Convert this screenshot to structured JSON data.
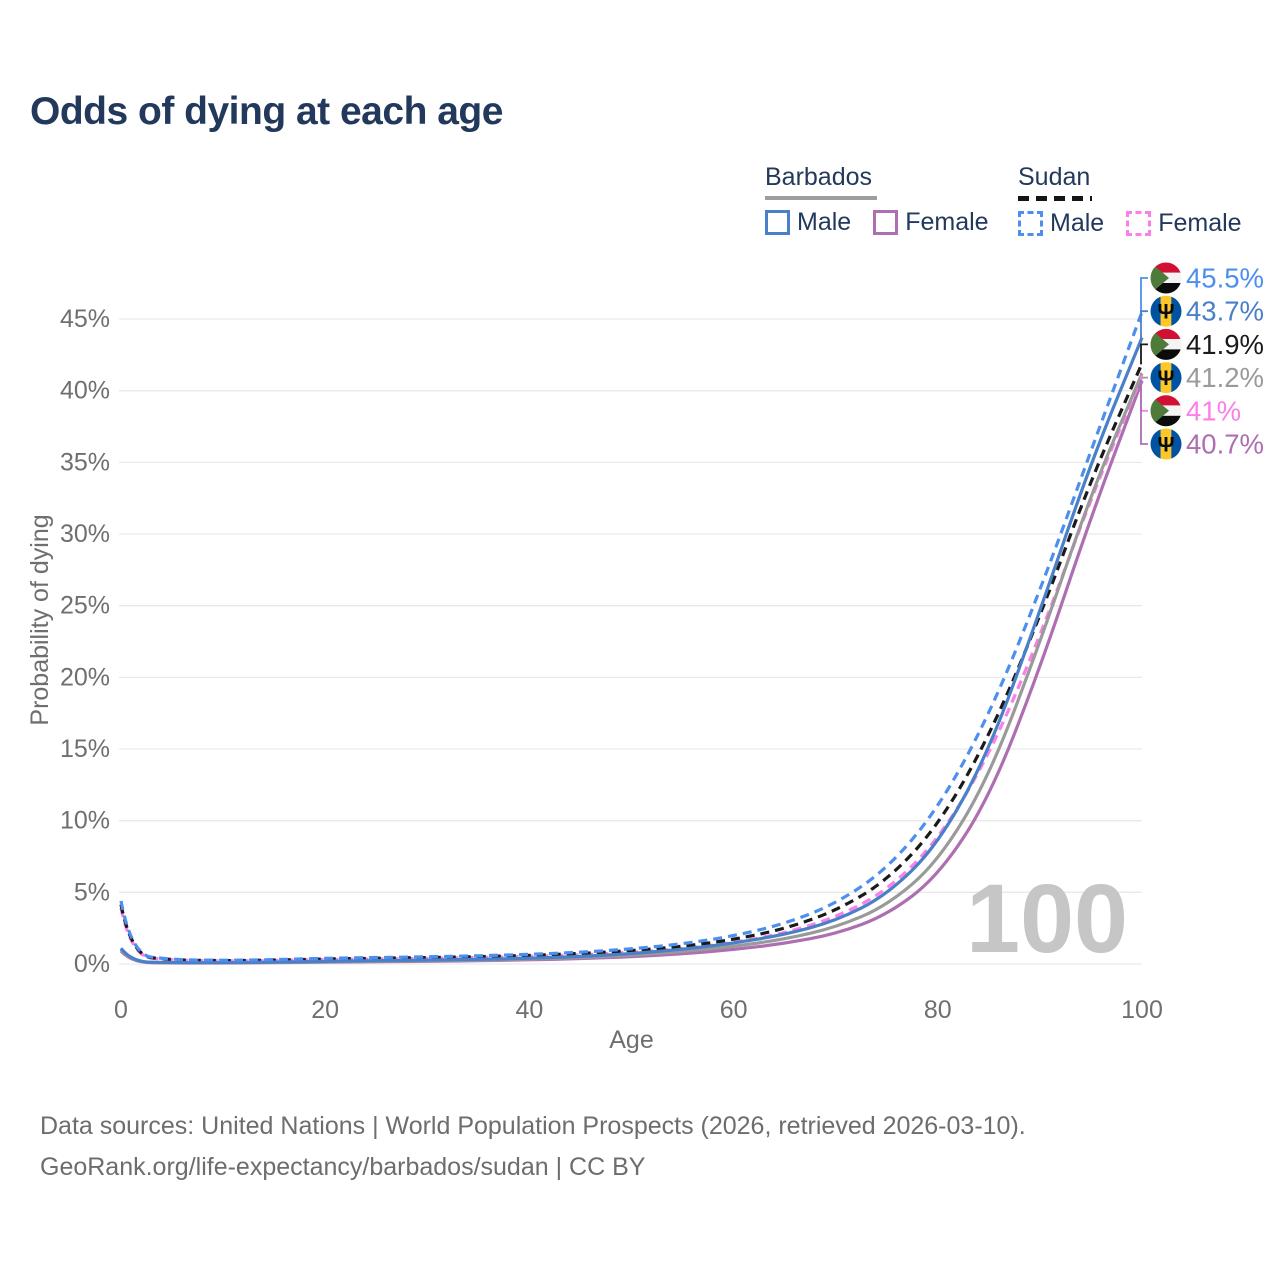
{
  "title": "Odds of dying at each age",
  "legend": {
    "groups": [
      {
        "country": "Barbados",
        "style": "solid",
        "underline_color": "#9e9e9e",
        "items": [
          {
            "label": "Male",
            "color": "#4a80c8"
          },
          {
            "label": "Female",
            "color": "#ad6eb2"
          }
        ]
      },
      {
        "country": "Sudan",
        "style": "dashed",
        "underline_color": "#151515",
        "items": [
          {
            "label": "Male",
            "color": "#4d8fee"
          },
          {
            "label": "Female",
            "color": "#fb7fe8"
          }
        ]
      }
    ]
  },
  "watermark": "100",
  "footer": {
    "line1": "Data sources: United Nations | World Population Prospects (2026, retrieved 2026-03-10).",
    "line2": "GeoRank.org/life-expectancy/barbados/sudan | CC BY"
  },
  "chart_data": {
    "type": "line",
    "title": "Odds of dying at each age",
    "xlabel": "Age",
    "ylabel": "Probability of dying",
    "xlim": [
      0,
      100
    ],
    "ylim_percent": [
      0,
      47
    ],
    "x_ticks": [
      0,
      20,
      40,
      60,
      80,
      100
    ],
    "y_ticks_percent": [
      0,
      5,
      10,
      15,
      20,
      25,
      30,
      35,
      40,
      45
    ],
    "grid": "horizontal",
    "legend_position": "top-right",
    "x": [
      0,
      1,
      5,
      10,
      15,
      20,
      25,
      30,
      35,
      40,
      45,
      50,
      55,
      60,
      65,
      70,
      75,
      80,
      85,
      90,
      95,
      100
    ],
    "series": [
      {
        "name": "Sudan Male",
        "country": "Sudan",
        "sex": "Male",
        "color": "#4d8fee",
        "dash": true,
        "end_label": "45.5%",
        "values_percent": [
          4.4,
          0.65,
          0.3,
          0.25,
          0.3,
          0.4,
          0.45,
          0.5,
          0.57,
          0.67,
          0.82,
          1.05,
          1.4,
          1.95,
          2.8,
          4.2,
          6.6,
          10.8,
          17.3,
          26.0,
          35.8,
          45.5
        ]
      },
      {
        "name": "Barbados Male",
        "country": "Barbados",
        "sex": "Male",
        "color": "#4a80c8",
        "dash": false,
        "end_label": "43.7%",
        "values_percent": [
          1.1,
          0.15,
          0.09,
          0.09,
          0.13,
          0.19,
          0.23,
          0.27,
          0.32,
          0.4,
          0.52,
          0.72,
          1.02,
          1.45,
          2.05,
          3.0,
          4.8,
          8.3,
          14.8,
          24.6,
          35.0,
          43.7
        ]
      },
      {
        "name": "Sudan Both sexes",
        "country": "Sudan",
        "sex": "Both",
        "color": "#1a1a1a",
        "dash": true,
        "end_label": "41.9%",
        "values_percent": [
          4.15,
          0.6,
          0.28,
          0.23,
          0.27,
          0.35,
          0.4,
          0.45,
          0.51,
          0.6,
          0.73,
          0.93,
          1.22,
          1.7,
          2.45,
          3.7,
          5.8,
          9.6,
          15.8,
          24.2,
          33.8,
          41.9
        ]
      },
      {
        "name": "Barbados Both sexes",
        "country": "Barbados",
        "sex": "Both",
        "color": "#9a9a9a",
        "dash": false,
        "end_label": "41.2%",
        "values_percent": [
          1.0,
          0.13,
          0.08,
          0.08,
          0.11,
          0.16,
          0.19,
          0.22,
          0.27,
          0.34,
          0.44,
          0.61,
          0.86,
          1.22,
          1.73,
          2.55,
          4.05,
          7.1,
          13.0,
          22.4,
          32.8,
          41.2
        ]
      },
      {
        "name": "Sudan Female",
        "country": "Sudan",
        "sex": "Female",
        "color": "#fb7fe8",
        "dash": true,
        "end_label": "41%",
        "values_percent": [
          3.9,
          0.55,
          0.26,
          0.21,
          0.24,
          0.31,
          0.35,
          0.39,
          0.45,
          0.53,
          0.64,
          0.81,
          1.06,
          1.48,
          2.15,
          3.25,
          5.1,
          8.6,
          14.5,
          22.8,
          32.5,
          41.0
        ]
      },
      {
        "name": "Barbados Female",
        "country": "Barbados",
        "sex": "Female",
        "color": "#ad6eb2",
        "dash": false,
        "end_label": "40.7%",
        "values_percent": [
          0.9,
          0.12,
          0.07,
          0.07,
          0.09,
          0.13,
          0.16,
          0.19,
          0.23,
          0.29,
          0.37,
          0.51,
          0.71,
          1.0,
          1.43,
          2.1,
          3.4,
          6.1,
          11.5,
          20.6,
          31.2,
          40.7
        ]
      }
    ]
  }
}
